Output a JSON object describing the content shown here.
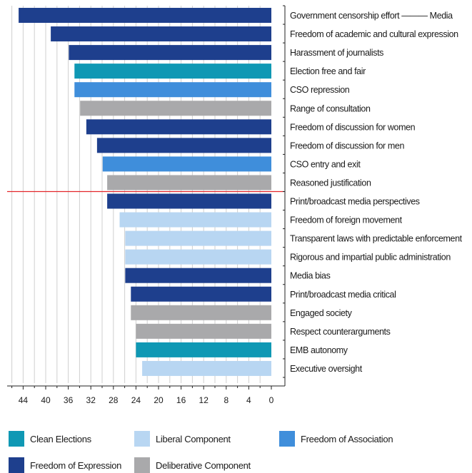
{
  "chart_data": {
    "type": "bar",
    "orientation": "horizontal",
    "x_axis": {
      "reversed": true,
      "ticks": [
        "44",
        "40",
        "36",
        "32",
        "28",
        "24",
        "20",
        "16",
        "12",
        "8",
        "4",
        "0"
      ],
      "range": [
        0,
        46
      ]
    },
    "grid": true,
    "legend_position": "bottom",
    "categories": [
      "Government censorship effort ——— Media",
      "Freedom of academic and cultural expression",
      "Harassment of journalists",
      "Election free and fair",
      "CSO repression",
      "Range of consultation",
      "Freedom of discussion for women",
      "Freedom of discussion for men",
      "CSO entry and exit",
      "Reasoned justification",
      "Print/broadcast media perspectives",
      "Freedom of foreign movement",
      "Transparent laws with predictable enforcement",
      "Rigorous and impartial public administration",
      "Media bias",
      "Print/broadcast media critical",
      "Engaged society",
      "Respect counterarguments",
      "EMB autonomy",
      "Executive oversight"
    ],
    "values": [
      44.8,
      39.1,
      35.9,
      34.9,
      34.9,
      33.9,
      32.8,
      30.9,
      29.9,
      29.1,
      29.1,
      26.9,
      25.9,
      25.9,
      25.9,
      24.9,
      24.9,
      24.0,
      24.0,
      22.9
    ],
    "groups": [
      "Freedom of Expression",
      "Freedom of Expression",
      "Freedom of Expression",
      "Clean Elections",
      "Freedom of Association",
      "Deliberative Component",
      "Freedom of Expression",
      "Freedom of Expression",
      "Freedom of Association",
      "Deliberative Component",
      "Freedom of Expression",
      "Liberal Component",
      "Liberal Component",
      "Liberal Component",
      "Freedom of Expression",
      "Freedom of Expression",
      "Deliberative Component",
      "Deliberative Component",
      "Clean Elections",
      "Liberal Component"
    ],
    "reference_line": {
      "between_categories": [
        "Reasoned justification",
        "Print/broadcast media perspectives"
      ],
      "color": "#e3262b"
    },
    "legend": [
      {
        "name": "Clean Elections",
        "color": "#0f98b4"
      },
      {
        "name": "Liberal Component",
        "color": "#b8d6f2"
      },
      {
        "name": "Freedom of Association",
        "color": "#3f8edb"
      },
      {
        "name": "Freedom of Expression",
        "color": "#1e3f8d"
      },
      {
        "name": "Deliberative Component",
        "color": "#a9a9ab"
      }
    ]
  }
}
